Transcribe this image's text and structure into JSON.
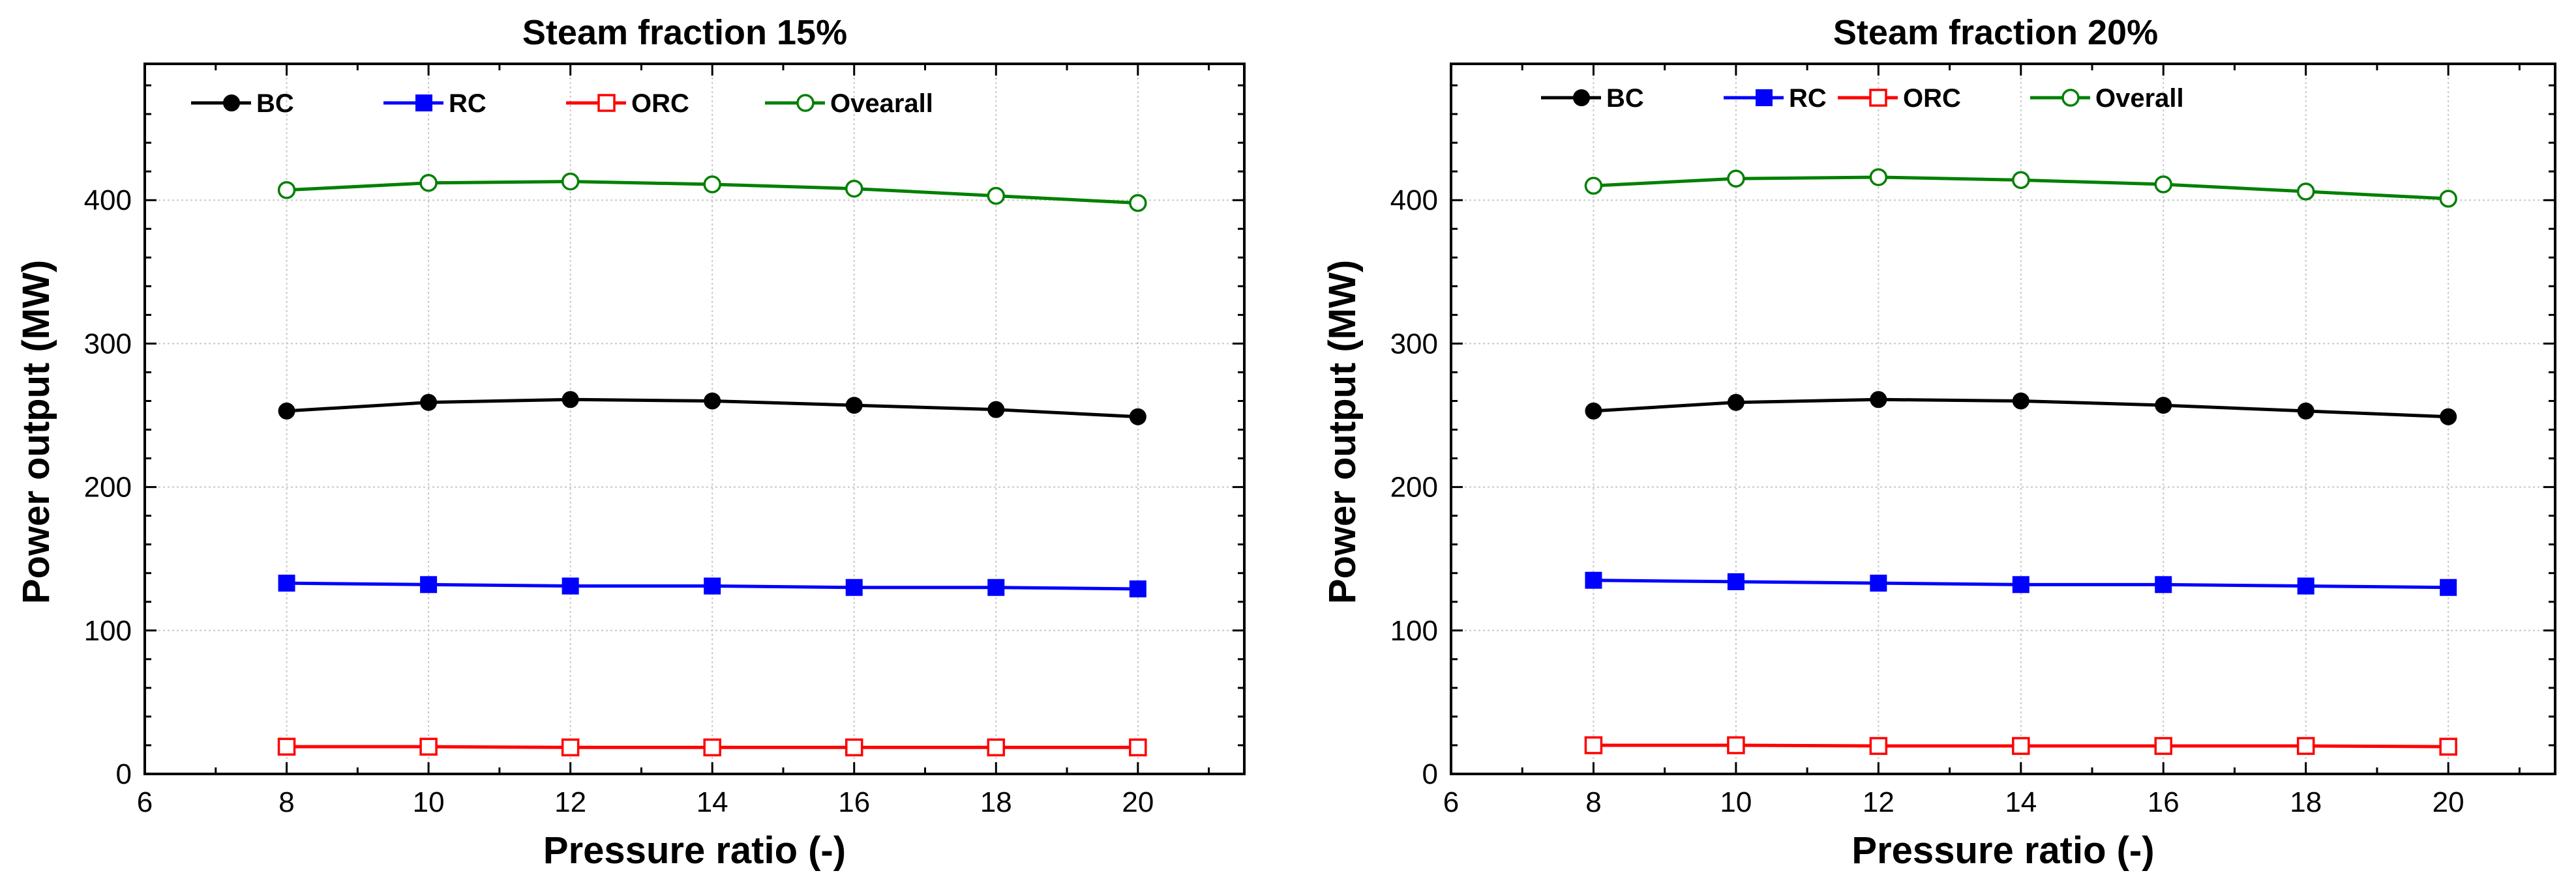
{
  "chart_data": [
    {
      "type": "line",
      "title": "Steam fraction 15%",
      "xlabel": "Pressure ratio (-)",
      "ylabel": "Power output (MW)",
      "xlim": [
        6,
        21.5
      ],
      "ylim": [
        0,
        495
      ],
      "xticks": [
        6,
        8,
        10,
        12,
        14,
        16,
        18,
        20
      ],
      "yticks": [
        0,
        100,
        200,
        300,
        400
      ],
      "grid": true,
      "legend_position": "top-left",
      "x": [
        8,
        10,
        12,
        14,
        16,
        18,
        20
      ],
      "series": [
        {
          "name": "BC",
          "color": "#000000",
          "marker": "filled-circle",
          "values": [
            253,
            259,
            261,
            260,
            257,
            254,
            249
          ]
        },
        {
          "name": "RC",
          "color": "#0000ff",
          "marker": "filled-square",
          "values": [
            133,
            132,
            131,
            131,
            130,
            130,
            129
          ]
        },
        {
          "name": "ORC",
          "color": "#ff0000",
          "marker": "open-square",
          "values": [
            19,
            19,
            18.5,
            18.5,
            18.5,
            18.5,
            18.5
          ]
        },
        {
          "name": "Ovearall",
          "color": "#008000",
          "marker": "open-circle",
          "values": [
            407,
            412,
            413,
            411,
            408,
            403,
            398
          ]
        }
      ]
    },
    {
      "type": "line",
      "title": "Steam fraction 20%",
      "xlabel": "Pressure ratio (-)",
      "ylabel": "Power output (MW)",
      "xlim": [
        6,
        21.5
      ],
      "ylim": [
        0,
        495
      ],
      "xticks": [
        6,
        8,
        10,
        12,
        14,
        16,
        18,
        20
      ],
      "yticks": [
        0,
        100,
        200,
        300,
        400
      ],
      "grid": true,
      "legend_position": "top-left",
      "x": [
        8,
        10,
        12,
        14,
        16,
        18,
        20
      ],
      "series": [
        {
          "name": "BC",
          "color": "#000000",
          "marker": "filled-circle",
          "values": [
            253,
            259,
            261,
            260,
            257,
            253,
            249
          ]
        },
        {
          "name": "RC",
          "color": "#0000ff",
          "marker": "filled-square",
          "values": [
            135,
            134,
            133,
            132,
            132,
            131,
            130
          ]
        },
        {
          "name": "ORC",
          "color": "#ff0000",
          "marker": "open-square",
          "values": [
            20,
            20,
            19.5,
            19.5,
            19.5,
            19.5,
            19
          ]
        },
        {
          "name": "Overall",
          "color": "#008000",
          "marker": "open-circle",
          "values": [
            410,
            415,
            416,
            414,
            411,
            406,
            401
          ]
        }
      ]
    }
  ]
}
